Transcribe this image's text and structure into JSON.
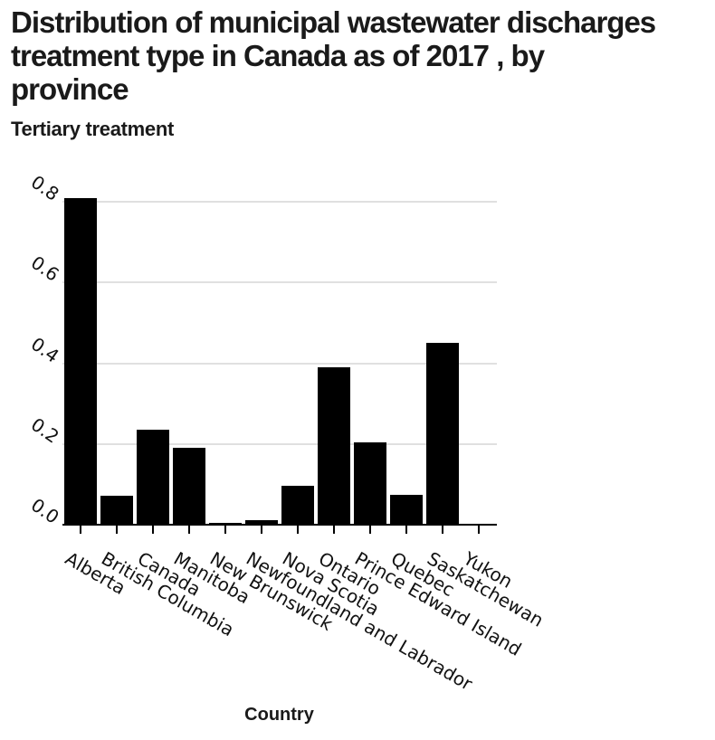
{
  "header": {
    "title": "Distribution of municipal wastewater discharges treatment type in Canada as of 2017 , by province",
    "title_lines": [
      "Distribution of municipal wastewater discharges",
      "treatment type in Canada as of 2017 , by",
      "province"
    ],
    "subtitle": "Tertiary treatment"
  },
  "chart_data": {
    "type": "bar",
    "title": "Distribution of municipal wastewater discharges treatment type in Canada as of 2017 , by province",
    "subtitle": "Tertiary treatment",
    "xlabel": "Country",
    "ylabel": "",
    "categories": [
      "Alberta",
      "British Columbia",
      "Canada",
      "Manitoba",
      "New Brunswick",
      "Newfoundland and Labrador",
      "Nova Scotia",
      "Ontario",
      "Prince Edward Island",
      "Quebec",
      "Saskatchewan",
      "Yukon"
    ],
    "values": [
      0.81,
      0.072,
      0.235,
      0.19,
      0.005,
      0.011,
      0.097,
      0.39,
      0.203,
      0.074,
      0.45,
      0
    ],
    "ylim": [
      0,
      0.8
    ],
    "yticks": [
      0.0,
      0.2,
      0.4,
      0.6,
      0.8
    ],
    "ytick_labels": [
      "0.0",
      "0.2",
      "0.4",
      "0.6",
      "0.8"
    ],
    "grid": true,
    "legend": "none",
    "bar_color": "#000000",
    "grid_color": "#e0e0e0",
    "background_color": "#ffffff",
    "tick_label_rotation_deg": 30
  }
}
